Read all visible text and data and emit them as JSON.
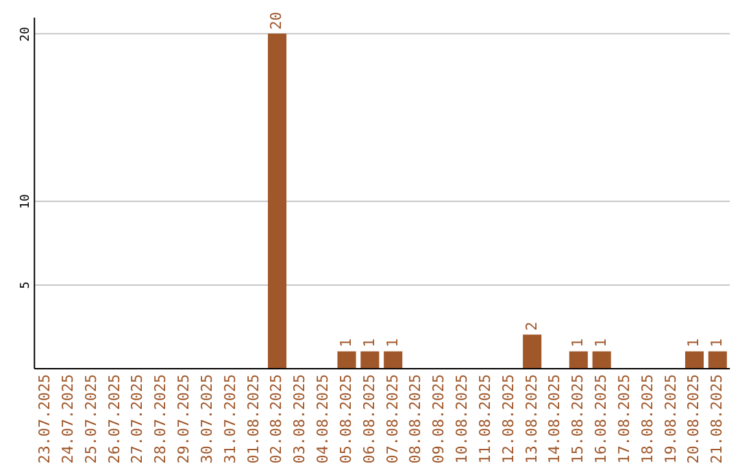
{
  "chart_data": {
    "type": "bar",
    "categories": [
      "23.07.2025",
      "24.07.2025",
      "25.07.2025",
      "26.07.2025",
      "27.07.2025",
      "28.07.2025",
      "29.07.2025",
      "30.07.2025",
      "31.07.2025",
      "01.08.2025",
      "02.08.2025",
      "03.08.2025",
      "04.08.2025",
      "05.08.2025",
      "06.08.2025",
      "07.08.2025",
      "08.08.2025",
      "09.08.2025",
      "10.08.2025",
      "11.08.2025",
      "12.08.2025",
      "13.08.2025",
      "14.08.2025",
      "15.08.2025",
      "16.08.2025",
      "17.08.2025",
      "18.08.2025",
      "19.08.2025",
      "20.08.2025",
      "21.08.2025"
    ],
    "values": [
      0,
      0,
      0,
      0,
      0,
      0,
      0,
      0,
      0,
      0,
      20,
      0,
      0,
      1,
      1,
      1,
      0,
      0,
      0,
      0,
      0,
      2,
      0,
      1,
      1,
      0,
      0,
      0,
      1,
      1
    ],
    "value_labels": [
      null,
      null,
      null,
      null,
      null,
      null,
      null,
      null,
      null,
      null,
      "20",
      null,
      null,
      "1",
      "1",
      "1",
      null,
      null,
      null,
      null,
      null,
      "2",
      null,
      "1",
      "1",
      null,
      null,
      null,
      "1",
      "1"
    ],
    "color": "#a0572a",
    "ylim": [
      0,
      21
    ],
    "yticks": [
      5,
      10,
      20
    ],
    "grid": "y"
  }
}
